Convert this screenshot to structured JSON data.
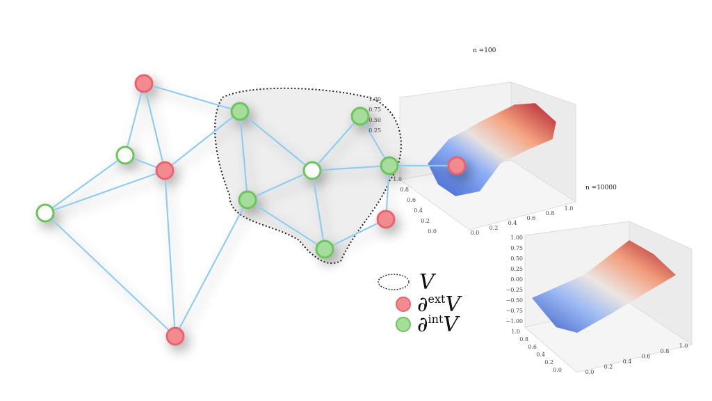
{
  "plots": [
    {
      "title": "n =100",
      "z_ticks": [
        "1.00",
        "0.75",
        "0.50",
        "0.25"
      ],
      "y_ticks": [
        "1.0",
        "0.8",
        "0.6",
        "0.4",
        "0.2",
        "0.0"
      ],
      "x_ticks": [
        "0.0",
        "0.2",
        "0.4",
        "0.6",
        "0.8",
        "1.0"
      ]
    },
    {
      "title": "n =10000",
      "z_ticks": [
        "1.00",
        "0.75",
        "0.50",
        "0.25",
        "0.00",
        "−0.25",
        "−0.50",
        "−0.75",
        "−1.00"
      ],
      "y_ticks": [
        "1.0",
        "0.8",
        "0.6",
        "0.4",
        "0.2",
        "0.0"
      ],
      "x_ticks": [
        "0.0",
        "0.2",
        "0.4",
        "0.6",
        "0.8",
        "1.0"
      ]
    }
  ],
  "legend": [
    {
      "label": "V"
    },
    {
      "symbol": "∂",
      "superscript": "ext",
      "label": "V"
    },
    {
      "symbol": "∂",
      "superscript": "int",
      "label": "V"
    }
  ]
}
